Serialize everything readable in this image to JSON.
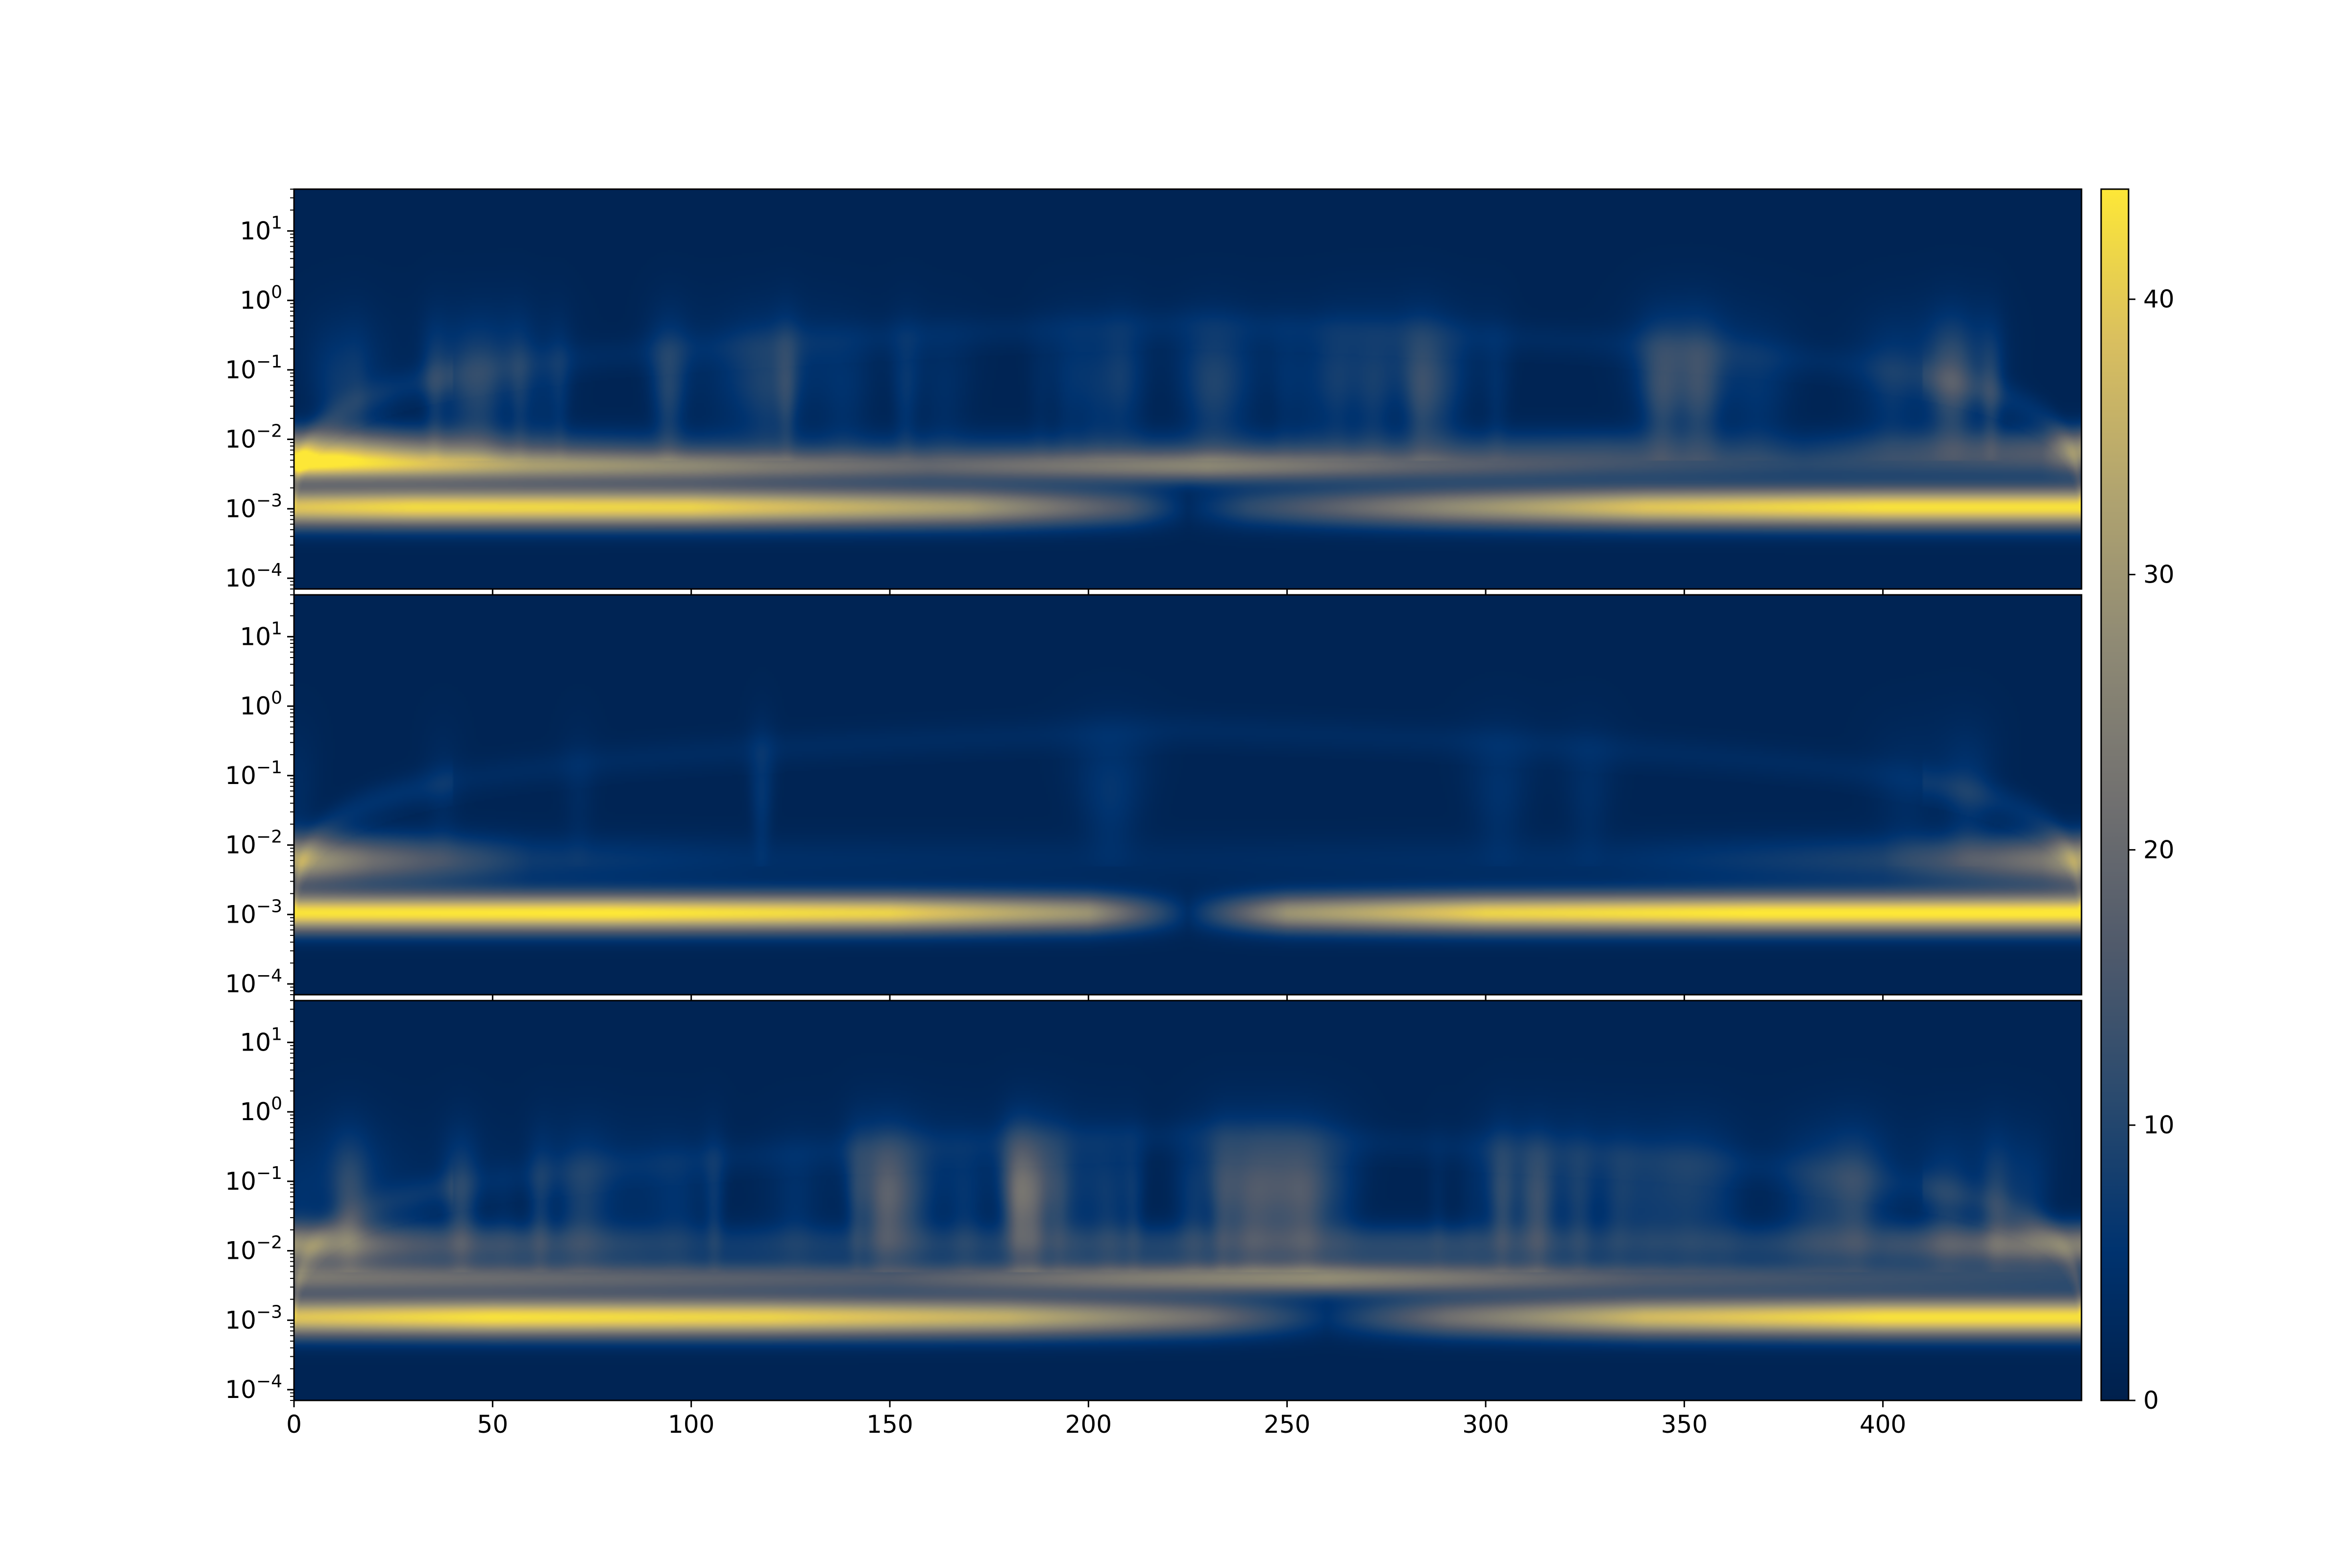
{
  "chart_data": {
    "type": "heatmap",
    "colormap": "cividis",
    "panels": [
      {
        "name": "",
        "yscale": "log",
        "ylim": [
          7e-05,
          40
        ],
        "yticks": [
          {
            "value": 0.0001,
            "label_base": "10",
            "label_exp": "−4"
          },
          {
            "value": 0.001,
            "label_base": "10",
            "label_exp": "−3"
          },
          {
            "value": 0.01,
            "label_base": "10",
            "label_exp": "−2"
          },
          {
            "value": 0.1,
            "label_base": "10",
            "label_exp": "−1"
          },
          {
            "value": 1,
            "label_base": "10",
            "label_exp": "0"
          },
          {
            "value": 10,
            "label_base": "10",
            "label_exp": "1"
          }
        ],
        "bands": [
          {
            "scale": 0.00105,
            "width_decades": 0.28,
            "peak": 42,
            "profile": [
              [
                0,
                38
              ],
              [
                30,
                41
              ],
              [
                100,
                40
              ],
              [
                170,
                30
              ],
              [
                210,
                14
              ],
              [
                225,
                2
              ],
              [
                240,
                10
              ],
              [
                290,
                26
              ],
              [
                340,
                38
              ],
              [
                400,
                42
              ],
              [
                450,
                42
              ]
            ]
          },
          {
            "scale": 0.004,
            "width_decades": 0.22,
            "peak": 28,
            "profile": [
              [
                0,
                28
              ],
              [
                40,
                26
              ],
              [
                100,
                22
              ],
              [
                160,
                15
              ],
              [
                230,
                22
              ],
              [
                280,
                14
              ],
              [
                330,
                8
              ],
              [
                450,
                4
              ]
            ]
          },
          {
            "scale": 0.007,
            "width_decades": 0.3,
            "peak": 28,
            "profile": [
              [
                0,
                30
              ],
              [
                20,
                24
              ],
              [
                60,
                10
              ],
              [
                120,
                5
              ],
              [
                280,
                7
              ],
              [
                330,
                9
              ],
              [
                380,
                5
              ],
              [
                440,
                14
              ],
              [
                450,
                28
              ]
            ]
          }
        ],
        "noise": 0.8
      },
      {
        "name": "",
        "yscale": "log",
        "ylim": [
          7e-05,
          40
        ],
        "yticks": [
          {
            "value": 0.0001,
            "label_base": "10",
            "label_exp": "−4"
          },
          {
            "value": 0.001,
            "label_base": "10",
            "label_exp": "−3"
          },
          {
            "value": 0.01,
            "label_base": "10",
            "label_exp": "−2"
          },
          {
            "value": 0.1,
            "label_base": "10",
            "label_exp": "−1"
          },
          {
            "value": 1,
            "label_base": "10",
            "label_exp": "0"
          },
          {
            "value": 10,
            "label_base": "10",
            "label_exp": "1"
          }
        ],
        "bands": [
          {
            "scale": 0.00105,
            "width_decades": 0.27,
            "peak": 43,
            "profile": [
              [
                0,
                42
              ],
              [
                80,
                43
              ],
              [
                150,
                40
              ],
              [
                200,
                28
              ],
              [
                225,
                3
              ],
              [
                250,
                28
              ],
              [
                300,
                40
              ],
              [
                370,
                43
              ],
              [
                450,
                43
              ]
            ]
          },
          {
            "scale": 0.006,
            "width_decades": 0.35,
            "peak": 28,
            "profile": [
              [
                0,
                32
              ],
              [
                20,
                20
              ],
              [
                60,
                6
              ],
              [
                120,
                3
              ],
              [
                225,
                2
              ],
              [
                330,
                3
              ],
              [
                400,
                8
              ],
              [
                440,
                22
              ],
              [
                450,
                32
              ]
            ]
          }
        ],
        "noise": 0.15
      },
      {
        "name": "",
        "yscale": "log",
        "ylim": [
          7e-05,
          40
        ],
        "yticks": [
          {
            "value": 0.0001,
            "label_base": "10",
            "label_exp": "−4"
          },
          {
            "value": 0.001,
            "label_base": "10",
            "label_exp": "−3"
          },
          {
            "value": 0.01,
            "label_base": "10",
            "label_exp": "−2"
          },
          {
            "value": 0.1,
            "label_base": "10",
            "label_exp": "−1"
          },
          {
            "value": 1,
            "label_base": "10",
            "label_exp": "0"
          },
          {
            "value": 10,
            "label_base": "10",
            "label_exp": "1"
          }
        ],
        "bands": [
          {
            "scale": 0.0011,
            "width_decades": 0.28,
            "peak": 42,
            "profile": [
              [
                0,
                38
              ],
              [
                50,
                42
              ],
              [
                120,
                40
              ],
              [
                180,
                34
              ],
              [
                230,
                20
              ],
              [
                260,
                4
              ],
              [
                290,
                20
              ],
              [
                340,
                36
              ],
              [
                400,
                42
              ],
              [
                450,
                42
              ]
            ]
          },
          {
            "scale": 0.004,
            "width_decades": 0.22,
            "peak": 28,
            "profile": [
              [
                0,
                20
              ],
              [
                150,
                14
              ],
              [
                210,
                22
              ],
              [
                260,
                26
              ],
              [
                300,
                20
              ],
              [
                340,
                14
              ],
              [
                450,
                8
              ]
            ]
          },
          {
            "scale": 0.012,
            "width_decades": 0.3,
            "peak": 22,
            "profile": [
              [
                0,
                26
              ],
              [
                30,
                14
              ],
              [
                100,
                6
              ],
              [
                200,
                8
              ],
              [
                290,
                10
              ],
              [
                340,
                6
              ],
              [
                400,
                10
              ],
              [
                450,
                24
              ]
            ]
          }
        ],
        "noise": 1.1
      }
    ],
    "x_shared": true,
    "xlim": [
      0,
      450
    ],
    "xticks": [
      0,
      50,
      100,
      150,
      200,
      250,
      300,
      350,
      400
    ],
    "xtick_labels": [
      "0",
      "50",
      "100",
      "150",
      "200",
      "250",
      "300",
      "350",
      "400"
    ],
    "xlabel": "",
    "ylabel": "",
    "title": "",
    "colorbar": {
      "range": [
        0,
        44
      ],
      "ticks": [
        0,
        10,
        20,
        30,
        40
      ],
      "tick_labels": [
        "0",
        "10",
        "20",
        "30",
        "40"
      ],
      "colors": [
        "#00204c",
        "#00336f",
        "#2a4a6e",
        "#505a6b",
        "#727170",
        "#8f8a74",
        "#b1a46f",
        "#d9bf5f",
        "#fde737"
      ]
    }
  }
}
